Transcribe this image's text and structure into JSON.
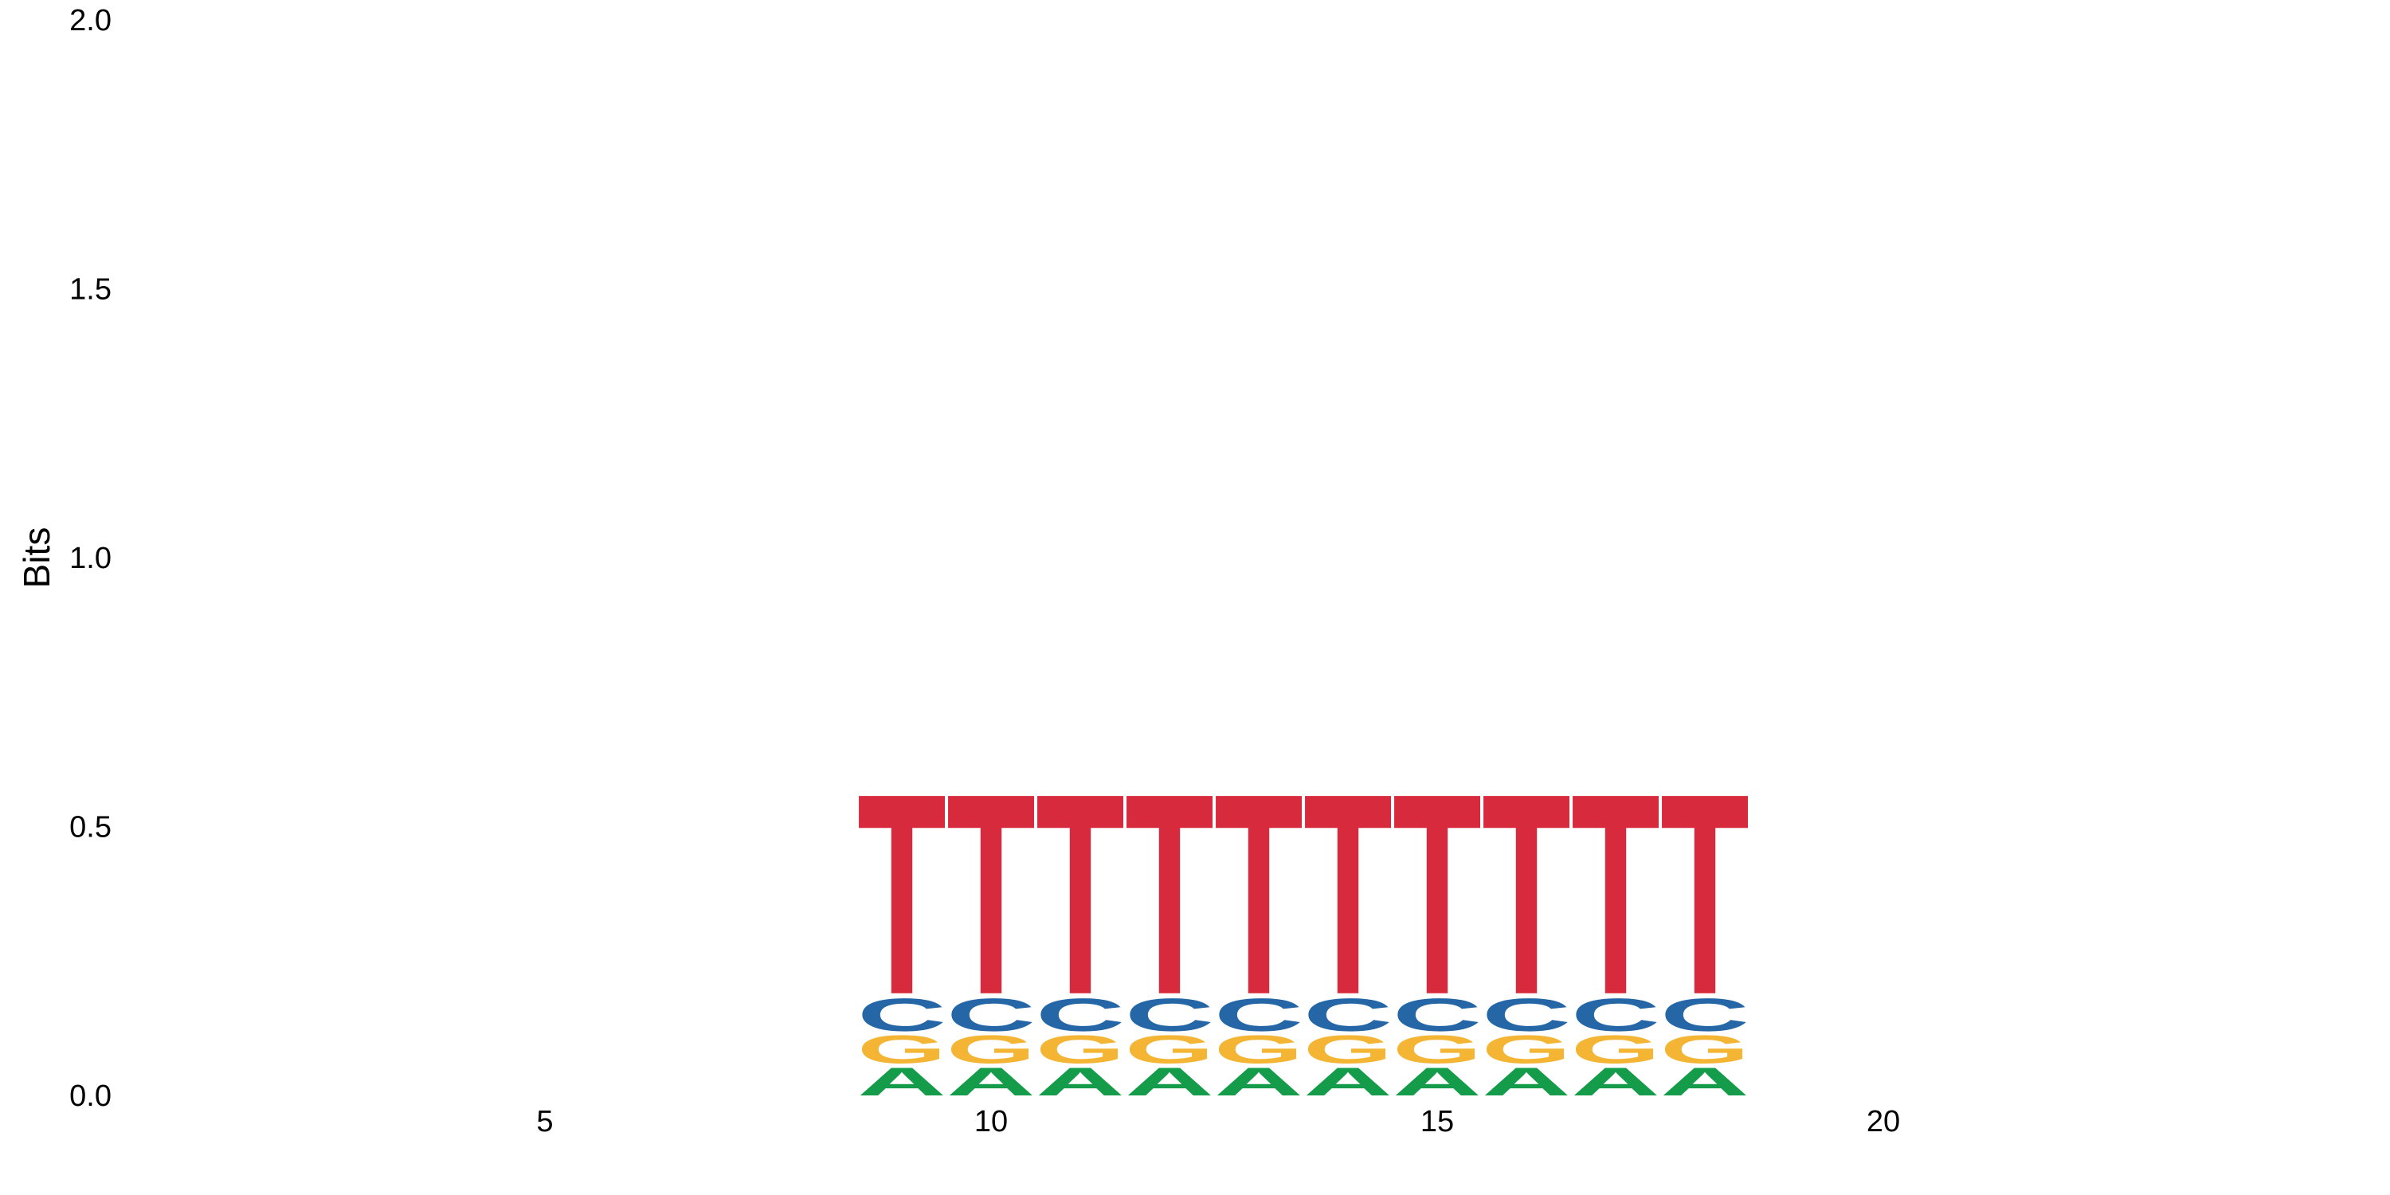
{
  "chart_data": {
    "type": "sequence-logo",
    "title": "",
    "xlabel": "",
    "ylabel": "Bits",
    "ylim": [
      0,
      2
    ],
    "yticks": [
      "0.0",
      "0.5",
      "1.0",
      "1.5",
      "2.0"
    ],
    "xlim": [
      0.5,
      25.5
    ],
    "xticks": [
      "5",
      "10",
      "15",
      "20"
    ],
    "grid": false,
    "legend": "none",
    "colors": {
      "A": "#149c4a",
      "G": "#f4b535",
      "C": "#2466a6",
      "T": "#d72a3d"
    },
    "positions": [
      {
        "x": 9,
        "A": 0.06,
        "G": 0.06,
        "C": 0.07,
        "T": 0.43
      },
      {
        "x": 10,
        "A": 0.06,
        "G": 0.06,
        "C": 0.07,
        "T": 0.43
      },
      {
        "x": 11,
        "A": 0.06,
        "G": 0.06,
        "C": 0.07,
        "T": 0.43
      },
      {
        "x": 12,
        "A": 0.06,
        "G": 0.06,
        "C": 0.07,
        "T": 0.43
      },
      {
        "x": 13,
        "A": 0.06,
        "G": 0.06,
        "C": 0.07,
        "T": 0.43
      },
      {
        "x": 14,
        "A": 0.06,
        "G": 0.06,
        "C": 0.07,
        "T": 0.43
      },
      {
        "x": 15,
        "A": 0.06,
        "G": 0.06,
        "C": 0.07,
        "T": 0.43
      },
      {
        "x": 16,
        "A": 0.06,
        "G": 0.06,
        "C": 0.07,
        "T": 0.43
      },
      {
        "x": 17,
        "A": 0.06,
        "G": 0.06,
        "C": 0.07,
        "T": 0.43
      },
      {
        "x": 18,
        "A": 0.06,
        "G": 0.06,
        "C": 0.07,
        "T": 0.43
      }
    ]
  }
}
